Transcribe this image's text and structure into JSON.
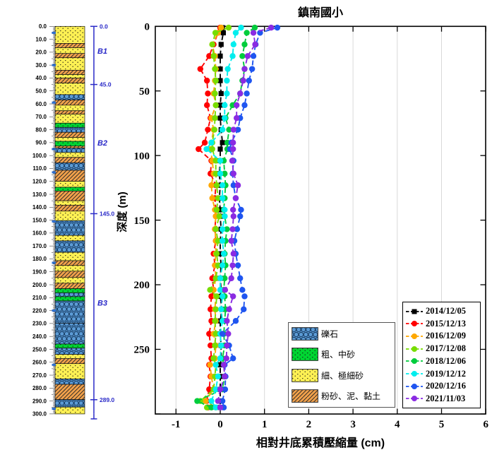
{
  "title": "鎮南國小",
  "axes": {
    "xlabel": "相對井底累積壓縮量 (cm)",
    "ylabel": "深度 (m)",
    "xticks": [
      "-1",
      "0",
      "1",
      "2",
      "3",
      "4",
      "5",
      "6"
    ],
    "yticks": [
      "0",
      "50",
      "100",
      "150",
      "200",
      "250"
    ]
  },
  "chart_data": {
    "type": "line",
    "title": "鎮南國小",
    "xlabel": "相對井底累積壓縮量 (cm)",
    "ylabel": "深度 (m)",
    "xlim": [
      -1.47,
      6
    ],
    "ylim": [
      300,
      0
    ],
    "grid": "vertical-gridlines-only",
    "legend_position": "lower-right",
    "depths_m": [
      1,
      5,
      14,
      23,
      33,
      42,
      52,
      61,
      71,
      80,
      90,
      95,
      104,
      114,
      123,
      133,
      142,
      147,
      157,
      166,
      176,
      185,
      195,
      204,
      209,
      219,
      228,
      238,
      247,
      257,
      262,
      271,
      281,
      290,
      295
    ],
    "series": [
      {
        "name": "2014/12/05",
        "color": "#000000",
        "marker": "square",
        "values": [
          0.05,
          0.07,
          0.02,
          0,
          0,
          0,
          0.02,
          0,
          0,
          0.02,
          0.05,
          0,
          0,
          -0.02,
          0,
          -0.02,
          0,
          0,
          0.02,
          0,
          0,
          0.02,
          0,
          0.02,
          0,
          0.04,
          0,
          0,
          0.02,
          0.02,
          0,
          0,
          0,
          0,
          0
        ]
      },
      {
        "name": "2015/12/13",
        "color": "#ff0000",
        "marker": "circle",
        "values": [
          0,
          -0.05,
          -0.15,
          -0.25,
          -0.45,
          -0.3,
          -0.28,
          -0.3,
          -0.22,
          -0.28,
          -0.35,
          -0.49,
          -0.2,
          -0.22,
          -0.1,
          -0.12,
          -0.1,
          -0.1,
          -0.12,
          -0.1,
          -0.15,
          -0.12,
          -0.18,
          -0.15,
          -0.2,
          -0.22,
          -0.2,
          -0.25,
          -0.22,
          -0.2,
          -0.25,
          -0.22,
          -0.25,
          -0.31,
          -0.28
        ]
      },
      {
        "name": "2016/12/09",
        "color": "#ffa800",
        "marker": "circle",
        "values": [
          0.02,
          -0.05,
          -0.18,
          -0.12,
          -0.1,
          -0.12,
          -0.15,
          -0.1,
          -0.2,
          -0.15,
          -0.2,
          -0.22,
          -0.18,
          -0.15,
          -0.2,
          -0.18,
          -0.12,
          -0.1,
          -0.12,
          -0.1,
          -0.1,
          -0.12,
          -0.1,
          -0.15,
          -0.1,
          -0.12,
          -0.1,
          -0.15,
          -0.1,
          -0.12,
          -0.23,
          -0.2,
          -0.15,
          -0.33,
          -0.1
        ]
      },
      {
        "name": "2017/12/08",
        "color": "#77dd00",
        "marker": "circle",
        "values": [
          0.19,
          -0.11,
          -0.18,
          -0.15,
          -0.12,
          -0.1,
          -0.12,
          -0.1,
          -0.12,
          -0.13,
          -0.18,
          -0.18,
          -0.1,
          -0.1,
          -0.08,
          -0.05,
          -0.08,
          -0.02,
          -0.1,
          -0.05,
          -0.08,
          -0.05,
          -0.1,
          -0.23,
          -0.08,
          -0.1,
          -0.12,
          -0.1,
          -0.12,
          -0.15,
          -0.1,
          -0.12,
          -0.15,
          -0.45,
          -0.3
        ]
      },
      {
        "name": "2018/12/06",
        "color": "#00cd3c",
        "marker": "circle",
        "values": [
          0.78,
          0.6,
          0.55,
          0.5,
          0.55,
          0.5,
          0.45,
          0.28,
          0.12,
          0.2,
          0.16,
          0.16,
          0.08,
          0.1,
          0.12,
          0.1,
          0.08,
          0.1,
          0.15,
          0.12,
          0.1,
          0.12,
          0.1,
          0.08,
          0.1,
          0.12,
          0.1,
          0.08,
          0.1,
          0.05,
          0.08,
          0.1,
          0.05,
          -0.52,
          -0.2
        ]
      },
      {
        "name": "2019/12/12",
        "color": "#00eeee",
        "marker": "circle",
        "values": [
          0.47,
          0.35,
          0.3,
          0.28,
          0.17,
          0.15,
          0.15,
          0.1,
          0.1,
          0.05,
          -0.2,
          -0.31,
          0,
          0,
          0.05,
          0.05,
          0.1,
          0.1,
          0.05,
          0.05,
          0.08,
          0.05,
          0,
          0,
          0.05,
          0.02,
          0.05,
          0,
          0.02,
          0,
          -0.1,
          -0.05,
          -0.1,
          -0.2,
          -0.1
        ]
      },
      {
        "name": "2020/12/16",
        "color": "#1f55f0",
        "marker": "circle",
        "values": [
          1.29,
          0.9,
          0.8,
          0.75,
          0.72,
          0.65,
          0.6,
          0.55,
          0.45,
          0.4,
          0.25,
          0.22,
          0.3,
          0.28,
          0.3,
          0.35,
          0.47,
          0.45,
          0.38,
          0.32,
          0.35,
          0.4,
          0.45,
          0.5,
          0.55,
          0.53,
          0.35,
          0.05,
          0.2,
          0.29,
          0.1,
          0.12,
          0.11,
          0.05,
          0.08
        ]
      },
      {
        "name": "2021/11/03",
        "color": "#8a2be2",
        "marker": "circle",
        "values": [
          1.15,
          0.75,
          0.79,
          0.62,
          0.55,
          0.52,
          0.45,
          0.37,
          0.37,
          0.3,
          0.29,
          0.29,
          0.27,
          0.3,
          0.4,
          0.35,
          0.29,
          0.3,
          0.28,
          0.25,
          0.3,
          0.28,
          0.25,
          0.11,
          0.29,
          0.2,
          0.15,
          0.18,
          0.15,
          0.14,
          0.08,
          0.1,
          0,
          -0.05,
          0
        ]
      }
    ]
  },
  "borehole": {
    "depth_ticks": [
      "0.0",
      "10.0",
      "20.0",
      "30.0",
      "40.0",
      "50.0",
      "60.0",
      "70.0",
      "80.0",
      "90.0",
      "100.0",
      "110.0",
      "120.0",
      "130.0",
      "140.0",
      "150.0",
      "160.0",
      "170.0",
      "180.0",
      "190.0",
      "200.0",
      "210.0",
      "220.0",
      "230.0",
      "240.0",
      "250.0",
      "260.0",
      "270.0",
      "280.0",
      "290.0",
      "300.0"
    ],
    "anchors": [
      {
        "depth": 0,
        "label": "0.0"
      },
      {
        "depth": 45,
        "label": "45.0"
      },
      {
        "depth": 145,
        "label": "145.0"
      },
      {
        "depth": 289,
        "label": "289.0"
      }
    ],
    "sections": [
      {
        "label": "B1",
        "depth": 19
      },
      {
        "label": "B2",
        "depth": 90
      },
      {
        "label": "B3",
        "depth": 214
      }
    ],
    "nub_depths": [
      5,
      30,
      59,
      95,
      113,
      151,
      183,
      220,
      262,
      296
    ],
    "annotation_color": "#2a2ac8",
    "layers": [
      [
        0,
        13.2,
        "fine"
      ],
      [
        13.2,
        16.5,
        "clay"
      ],
      [
        16.5,
        21,
        "fine"
      ],
      [
        21,
        24.3,
        "clay"
      ],
      [
        24.3,
        34,
        "fine"
      ],
      [
        34,
        37.3,
        "clay"
      ],
      [
        37.3,
        40.1,
        "fine"
      ],
      [
        40.1,
        43.9,
        "clay"
      ],
      [
        43.9,
        52.8,
        "fine"
      ],
      [
        52.8,
        57,
        "gravel"
      ],
      [
        57,
        61,
        "clay"
      ],
      [
        61,
        65.3,
        "fine"
      ],
      [
        65.3,
        68,
        "clay"
      ],
      [
        68,
        74.9,
        "fine"
      ],
      [
        74.9,
        78.2,
        "coarse"
      ],
      [
        78.2,
        82,
        "gravel"
      ],
      [
        82,
        86,
        "clay"
      ],
      [
        86,
        89,
        "fine"
      ],
      [
        89,
        92.7,
        "coarse"
      ],
      [
        92.7,
        94.2,
        "clay"
      ],
      [
        94.2,
        97.6,
        "gravel"
      ],
      [
        97.6,
        101.4,
        "fine"
      ],
      [
        101.4,
        105.6,
        "clay"
      ],
      [
        105.6,
        111.4,
        "gravel"
      ],
      [
        111.4,
        119.9,
        "clay"
      ],
      [
        119.9,
        124.5,
        "fine"
      ],
      [
        124.5,
        127.5,
        "coarse"
      ],
      [
        127.5,
        135,
        "clay"
      ],
      [
        135,
        138.4,
        "fine"
      ],
      [
        138.4,
        143,
        "clay"
      ],
      [
        143,
        150.4,
        "fine"
      ],
      [
        150.4,
        161.8,
        "gravel"
      ],
      [
        161.8,
        166,
        "fine"
      ],
      [
        166,
        174.9,
        "gravel"
      ],
      [
        174.9,
        181.4,
        "fine"
      ],
      [
        181.4,
        185.1,
        "clay"
      ],
      [
        185.1,
        189.5,
        "fine"
      ],
      [
        189.5,
        194.4,
        "clay"
      ],
      [
        194.4,
        198.8,
        "fine"
      ],
      [
        198.8,
        203,
        "clay"
      ],
      [
        203,
        206.3,
        "coarse"
      ],
      [
        206.3,
        209.2,
        "gravel"
      ],
      [
        209.2,
        212.5,
        "coarse"
      ],
      [
        212.5,
        229.9,
        "gravel"
      ],
      [
        229.9,
        245.9,
        "gravel"
      ],
      [
        245.9,
        249,
        "coarse"
      ],
      [
        249,
        253.9,
        "gravel"
      ],
      [
        253.9,
        257.1,
        "fine"
      ],
      [
        257.1,
        261.1,
        "clay"
      ],
      [
        261.1,
        272.9,
        "fine"
      ],
      [
        272.9,
        277.1,
        "gravel"
      ],
      [
        277.1,
        288.9,
        "clay"
      ],
      [
        288.9,
        294.7,
        "gravel"
      ],
      [
        294.7,
        300,
        "fine"
      ]
    ],
    "layer_types": {
      "gravel": {
        "label": "礫石",
        "fill": "#5b9bd5",
        "accent": "#16395f",
        "pattern": "circles"
      },
      "coarse": {
        "label": "粗、中砂",
        "fill": "#00d432",
        "accent": "#111111",
        "pattern": "dots"
      },
      "fine": {
        "label": "細、極細砂",
        "fill": "#fdf053",
        "accent": "#111111",
        "pattern": "dots"
      },
      "clay": {
        "label": "粉砂、泥、黏土",
        "fill": "#f0a04b",
        "accent": "#222222",
        "pattern": "hatch"
      }
    }
  },
  "legend": {
    "lithology_order": [
      "gravel",
      "coarse",
      "fine",
      "clay"
    ]
  }
}
